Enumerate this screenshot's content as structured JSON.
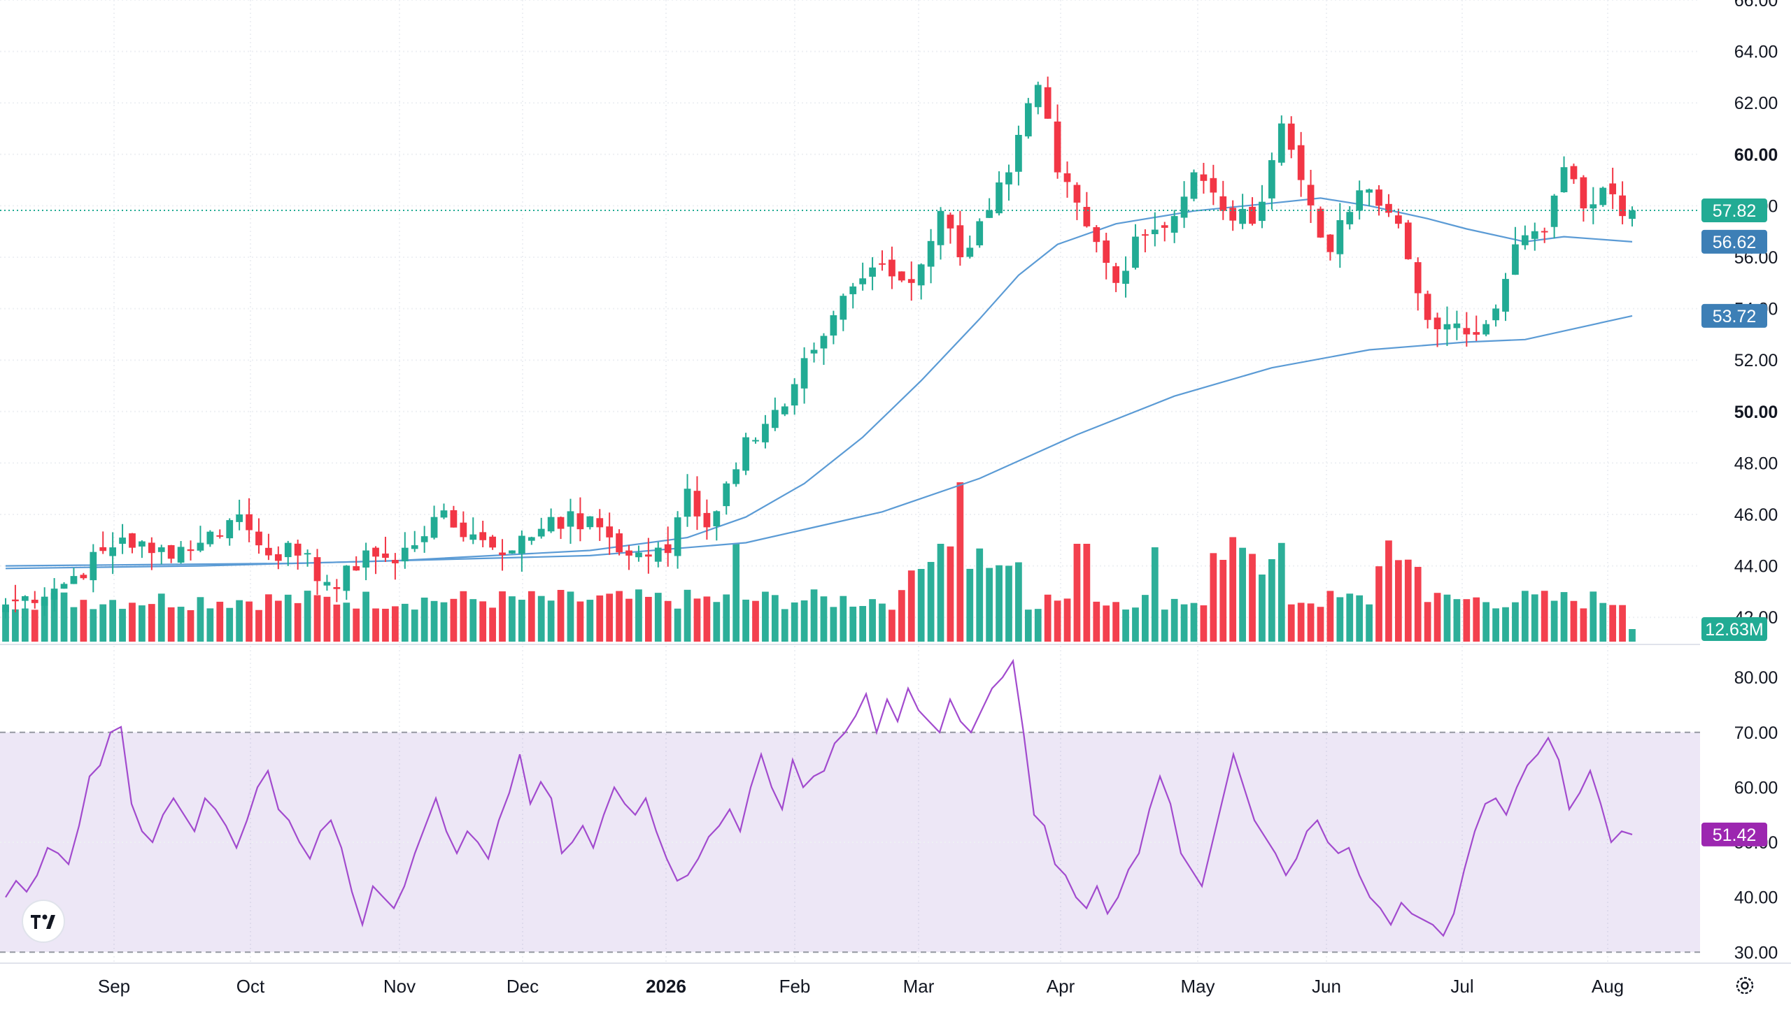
{
  "chart_data": [
    {
      "type": "candlestick",
      "panel": "price",
      "y_range": [
        41.0,
        66.0
      ],
      "y_ticks": [
        "42.00",
        "44.00",
        "46.00",
        "48.00",
        "50.00",
        "52.00",
        "54.00",
        "56.00",
        "58.00",
        "60.00",
        "62.00",
        "64.00",
        "66.00"
      ],
      "y_ticks_bold": [
        "50.00",
        "60.00"
      ],
      "grid": true,
      "last_price": {
        "value": 57.82,
        "label": "57.82",
        "color": "#22ab94"
      },
      "moving_averages": [
        {
          "value_label": "56.62",
          "color": "#5b9bd5",
          "label_bg": "#3d7fb6",
          "points": [
            [
              0,
              43.9
            ],
            [
              20,
              44.0
            ],
            [
              40,
              44.2
            ],
            [
              60,
              44.6
            ],
            [
              70,
              45.1
            ],
            [
              76,
              45.9
            ],
            [
              82,
              47.2
            ],
            [
              88,
              49.0
            ],
            [
              94,
              51.2
            ],
            [
              100,
              53.6
            ],
            [
              104,
              55.3
            ],
            [
              108,
              56.5
            ],
            [
              114,
              57.3
            ],
            [
              122,
              57.8
            ],
            [
              130,
              58.1
            ],
            [
              135,
              58.3
            ],
            [
              140,
              58.0
            ],
            [
              146,
              57.5
            ],
            [
              150,
              57.1
            ],
            [
              156,
              56.6
            ],
            [
              160,
              56.8
            ],
            [
              167,
              56.6
            ]
          ]
        },
        {
          "value_label": "53.72",
          "color": "#5b9bd5",
          "label_bg": "#3d7fb6",
          "points": [
            [
              0,
              44.0
            ],
            [
              30,
              44.1
            ],
            [
              60,
              44.4
            ],
            [
              76,
              44.9
            ],
            [
              90,
              46.1
            ],
            [
              100,
              47.4
            ],
            [
              110,
              49.1
            ],
            [
              120,
              50.6
            ],
            [
              130,
              51.7
            ],
            [
              140,
              52.4
            ],
            [
              150,
              52.7
            ],
            [
              156,
              52.8
            ],
            [
              167,
              53.72
            ]
          ]
        }
      ],
      "candle_key_points": [
        [
          0,
          42.5
        ],
        [
          6,
          43.3
        ],
        [
          12,
          45.1
        ],
        [
          15,
          44.5
        ],
        [
          20,
          44.9
        ],
        [
          24,
          46.0
        ],
        [
          26,
          44.8
        ],
        [
          30,
          44.4
        ],
        [
          34,
          43.1
        ],
        [
          37,
          44.6
        ],
        [
          40,
          44.1
        ],
        [
          44,
          45.9
        ],
        [
          49,
          45.0
        ],
        [
          52,
          44.6
        ],
        [
          56,
          45.9
        ],
        [
          61,
          45.5
        ],
        [
          64,
          44.4
        ],
        [
          68,
          44.5
        ],
        [
          70,
          47.0
        ],
        [
          72,
          45.5
        ],
        [
          76,
          49.0
        ],
        [
          80,
          50.2
        ],
        [
          83,
          52.4
        ],
        [
          86,
          54.5
        ],
        [
          89,
          55.6
        ],
        [
          93,
          55.0
        ],
        [
          96,
          57.8
        ],
        [
          98,
          56.0
        ],
        [
          100,
          57.4
        ],
        [
          103,
          59.3
        ],
        [
          106,
          62.7
        ],
        [
          108,
          59.3
        ],
        [
          111,
          57.2
        ],
        [
          114,
          55.0
        ],
        [
          116,
          56.8
        ],
        [
          120,
          57.6
        ],
        [
          122,
          59.3
        ],
        [
          125,
          57.8
        ],
        [
          128,
          57.3
        ],
        [
          131,
          61.2
        ],
        [
          133,
          59.0
        ],
        [
          136,
          56.2
        ],
        [
          139,
          58.6
        ],
        [
          141,
          58.0
        ],
        [
          143,
          57.3
        ],
        [
          145,
          54.6
        ],
        [
          147,
          53.2
        ],
        [
          150,
          53.0
        ],
        [
          152,
          53.4
        ],
        [
          155,
          56.5
        ],
        [
          158,
          57.0
        ],
        [
          160,
          59.5
        ],
        [
          162,
          57.9
        ],
        [
          164,
          58.7
        ],
        [
          166,
          57.6
        ],
        [
          167,
          57.82
        ]
      ],
      "volume": {
        "last_label": "12.63M",
        "label_color": "#22ab94"
      }
    },
    {
      "type": "line",
      "panel": "rsi",
      "y_range": [
        28,
        86
      ],
      "y_ticks": [
        "30.00",
        "40.00",
        "50.00",
        "60.00",
        "70.00",
        "80.00"
      ],
      "band": [
        30,
        70
      ],
      "band_color": "#7e57c2",
      "color": "#a24bce",
      "last_value": {
        "value": 51.42,
        "label": "51.42"
      },
      "values": [
        40,
        43,
        41,
        44,
        49,
        48,
        46,
        53,
        62,
        64,
        70,
        71,
        57,
        52,
        50,
        55,
        58,
        55,
        52,
        58,
        56,
        53,
        49,
        54,
        60,
        63,
        56,
        54,
        50,
        47,
        52,
        54,
        49,
        41,
        35,
        42,
        40,
        38,
        42,
        48,
        53,
        58,
        52,
        48,
        52,
        50,
        47,
        54,
        59,
        66,
        57,
        61,
        58,
        48,
        50,
        53,
        49,
        55,
        60,
        57,
        55,
        58,
        52,
        47,
        43,
        44,
        47,
        51,
        53,
        56,
        52,
        60,
        66,
        60,
        56,
        65,
        60,
        62,
        63,
        68,
        70,
        73,
        77,
        70,
        76,
        72,
        78,
        74,
        72,
        70,
        76,
        72,
        70,
        74,
        78,
        80,
        83,
        70,
        55,
        53,
        46,
        44,
        40,
        38,
        42,
        37,
        40,
        45,
        48,
        56,
        62,
        57,
        48,
        45,
        42,
        50,
        58,
        66,
        60,
        54,
        51,
        48,
        44,
        47,
        52,
        54,
        50,
        48,
        49,
        44,
        40,
        38,
        35,
        39,
        37,
        36,
        35,
        33,
        37,
        45,
        52,
        57,
        58,
        55,
        60,
        64,
        66,
        69,
        65,
        56,
        59,
        63,
        57,
        50,
        52,
        51.42
      ]
    }
  ],
  "x_axis": {
    "labels": [
      {
        "text": "Sep",
        "bold": false
      },
      {
        "text": "Oct",
        "bold": false
      },
      {
        "text": "Nov",
        "bold": false
      },
      {
        "text": "Dec",
        "bold": false
      },
      {
        "text": "2026",
        "bold": true
      },
      {
        "text": "Feb",
        "bold": false
      },
      {
        "text": "Mar",
        "bold": false
      },
      {
        "text": "Apr",
        "bold": false
      },
      {
        "text": "May",
        "bold": false
      },
      {
        "text": "Jun",
        "bold": false
      },
      {
        "text": "Jul",
        "bold": false
      },
      {
        "text": "Aug",
        "bold": false
      }
    ]
  },
  "colors": {
    "up": "#22ab94",
    "down": "#f23645",
    "grid": "#eef0f4",
    "axis_text": "#131722"
  },
  "logo": {
    "icon": "tradingview-logo-icon"
  },
  "settings": {
    "icon": "gear-icon"
  }
}
